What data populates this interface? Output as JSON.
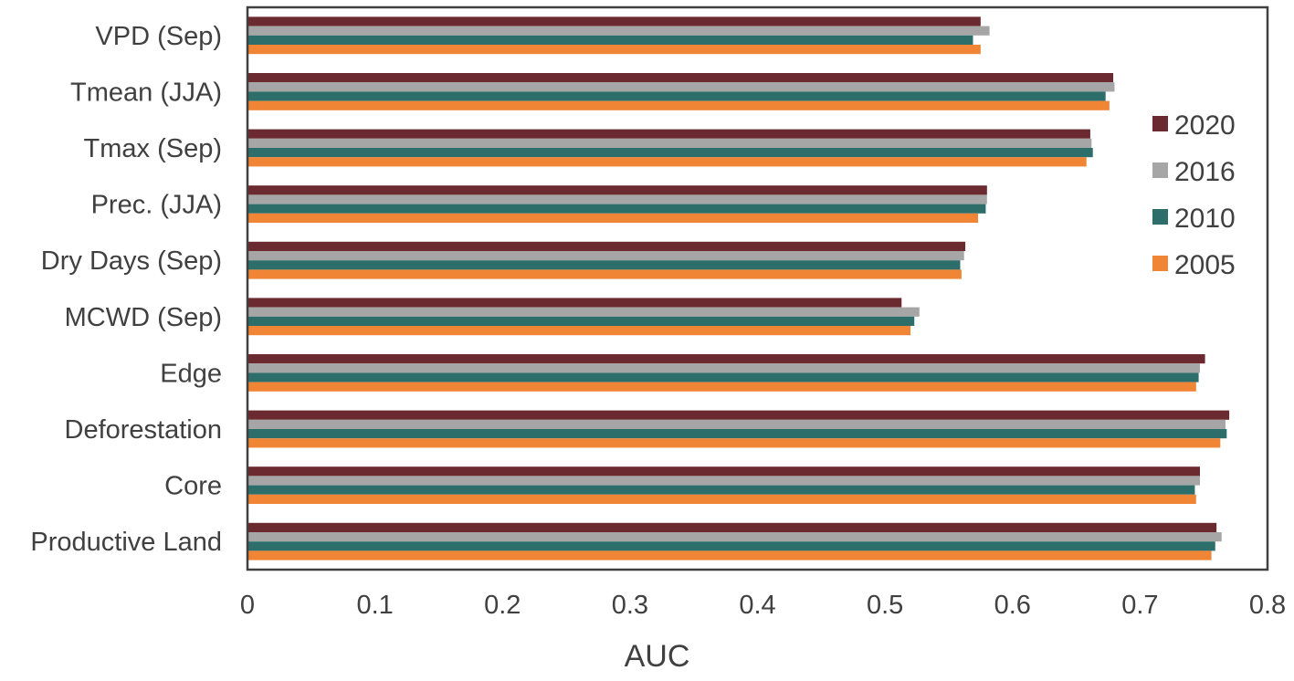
{
  "chart_data": {
    "type": "bar",
    "orientation": "horizontal",
    "title": "",
    "xlabel": "AUC",
    "ylabel": "",
    "xlim": [
      0,
      0.8
    ],
    "xticks": [
      "0",
      "0.1",
      "0.2",
      "0.3",
      "0.4",
      "0.5",
      "0.6",
      "0.7",
      "0.8"
    ],
    "grid": false,
    "legend_position": "right",
    "categories": [
      "VPD (Sep)",
      "Tmean (JJA)",
      "Tmax (Sep)",
      "Prec. (JJA)",
      "Dry Days (Sep)",
      "MCWD (Sep)",
      "Edge",
      "Deforestation",
      "Core",
      "Productive Land"
    ],
    "series": [
      {
        "name": "2020",
        "color": "#6b2a2f",
        "values": [
          0.575,
          0.679,
          0.661,
          0.58,
          0.563,
          0.513,
          0.751,
          0.77,
          0.747,
          0.76
        ]
      },
      {
        "name": "2016",
        "color": "#a6a6a6",
        "values": [
          0.582,
          0.68,
          0.662,
          0.58,
          0.562,
          0.527,
          0.747,
          0.767,
          0.747,
          0.764
        ]
      },
      {
        "name": "2010",
        "color": "#2d6e6a",
        "values": [
          0.569,
          0.673,
          0.663,
          0.579,
          0.559,
          0.523,
          0.746,
          0.768,
          0.743,
          0.759
        ]
      },
      {
        "name": "2005",
        "color": "#ef8535",
        "values": [
          0.575,
          0.676,
          0.658,
          0.573,
          0.56,
          0.52,
          0.744,
          0.763,
          0.744,
          0.756
        ]
      }
    ]
  }
}
